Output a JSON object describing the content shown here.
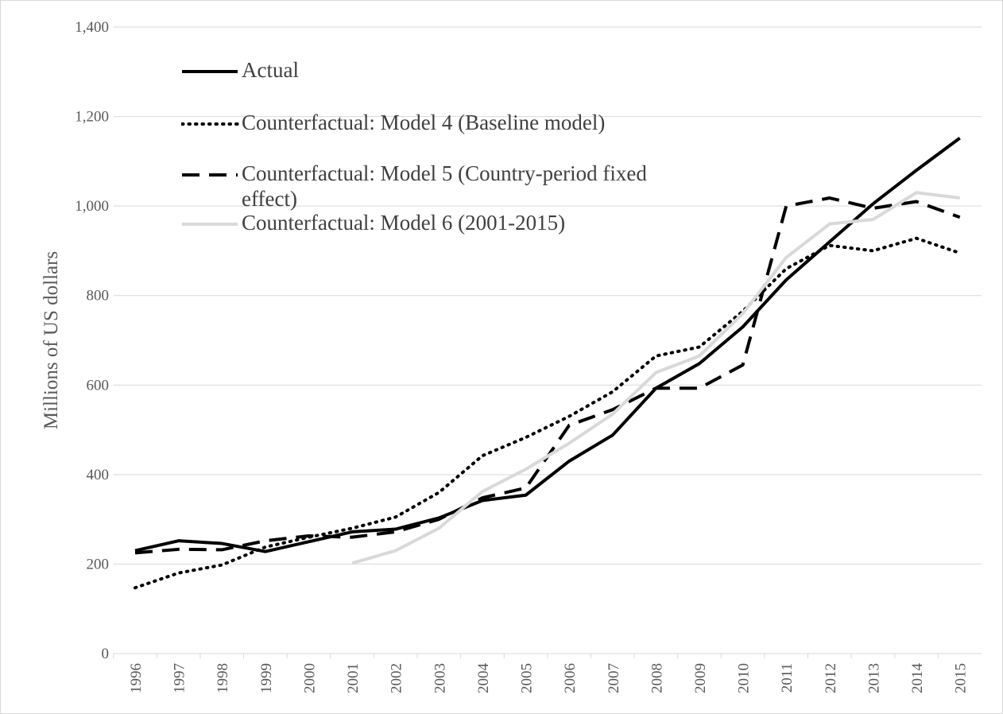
{
  "chart_data": {
    "type": "line",
    "y_label": "Millions of US dollars",
    "categories": [
      "1996",
      "1997",
      "1998",
      "1999",
      "2000",
      "2001",
      "2002",
      "2003",
      "2004",
      "2005",
      "2006",
      "2007",
      "2008",
      "2009",
      "2010",
      "2011",
      "2012",
      "2013",
      "2014",
      "2015"
    ],
    "series": [
      {
        "name": "Actual",
        "color": "#000000",
        "dash": "solid",
        "values": [
          230,
          252,
          246,
          228,
          250,
          272,
          278,
          303,
          342,
          354,
          430,
          488,
          593,
          648,
          730,
          835,
          920,
          1005,
          1080,
          1152
        ]
      },
      {
        "name": "Counterfactual: Model 4 (Baseline model)",
        "color": "#000000",
        "dash": "dotted",
        "values": [
          147,
          180,
          198,
          238,
          260,
          280,
          305,
          360,
          442,
          483,
          530,
          585,
          665,
          685,
          765,
          860,
          912,
          900,
          928,
          895
        ]
      },
      {
        "name": "Counterfactual: Model 5 (Country-period fixed effect)",
        "color": "#000000",
        "dash": "dashed",
        "values": [
          225,
          233,
          232,
          252,
          263,
          260,
          272,
          300,
          348,
          370,
          510,
          545,
          593,
          593,
          645,
          1000,
          1018,
          995,
          1010,
          975
        ]
      },
      {
        "name": "Counterfactual: Model 6 (2001-2015)",
        "color": "#d9d9d9",
        "dash": "solid",
        "values": [
          null,
          null,
          null,
          null,
          null,
          202,
          230,
          280,
          362,
          412,
          470,
          535,
          628,
          665,
          760,
          885,
          960,
          970,
          1030,
          1018
        ]
      }
    ],
    "ylim": [
      0,
      1400
    ],
    "yticks": [
      0,
      {
        "value": 200,
        "label": "200"
      },
      400,
      600,
      800,
      {
        "value": 1000,
        "label": "1,000"
      },
      {
        "value": 1200,
        "label": "1,200"
      },
      {
        "value": 1400,
        "label": "1,400"
      }
    ],
    "grid": true,
    "legend": "upper left"
  }
}
